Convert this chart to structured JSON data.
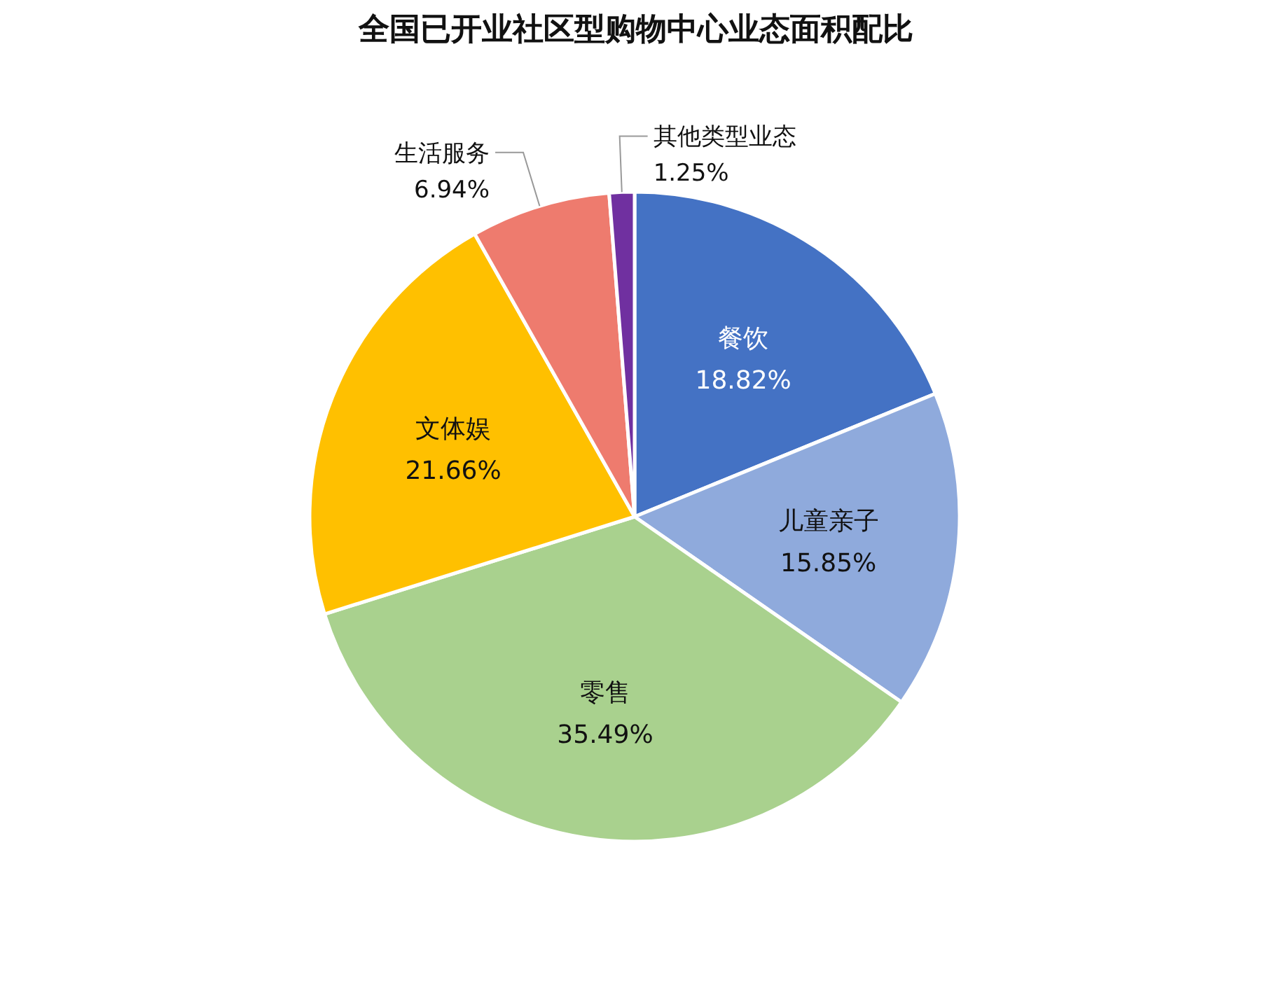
{
  "chart_data": {
    "type": "pie",
    "title": "全国已开业社区型购物中心业态面积配比",
    "categories": [
      "餐饮",
      "儿童亲子",
      "零售",
      "文体娱",
      "生活服务",
      "其他类型业态"
    ],
    "values": [
      18.82,
      15.85,
      35.49,
      21.66,
      6.94,
      1.25
    ],
    "colors": [
      "#4472c4",
      "#8faadc",
      "#a9d18e",
      "#ffc000",
      "#ee7b6e",
      "#7030a0"
    ],
    "value_labels": [
      "18.82%",
      "15.85%",
      "35.49%",
      "21.66%",
      "6.94%",
      "1.25%"
    ]
  }
}
